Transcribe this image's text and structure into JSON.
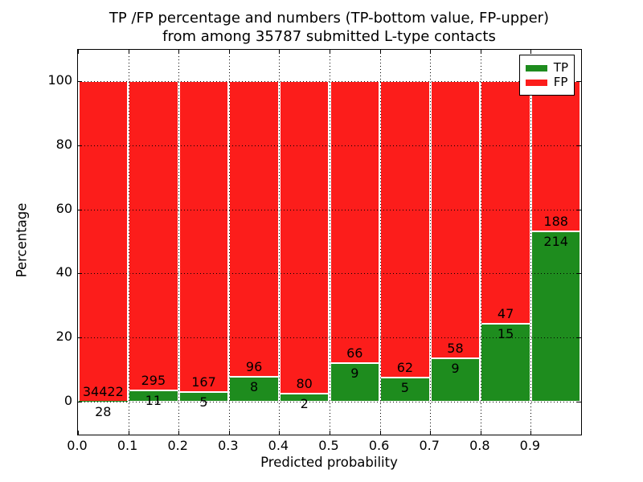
{
  "chart_data": {
    "type": "bar",
    "subtype": "stacked-percentage",
    "title_line1": "TP /FP percentage and numbers (TP-bottom value, FP-upper)",
    "title_line2": "from among 35787 submitted L-type contacts",
    "xlabel": "Predicted probability",
    "ylabel": "Percentage",
    "x_tick_labels": [
      "0.0",
      "0.1",
      "0.2",
      "0.3",
      "0.4",
      "0.5",
      "0.6",
      "0.7",
      "0.8",
      "0.9"
    ],
    "y_tick_labels": [
      0,
      20,
      40,
      60,
      80,
      100
    ],
    "xlim": [
      0.0,
      1.0
    ],
    "ylim": [
      -10.8,
      110.3
    ],
    "grid": "dotted-black-both-axes",
    "legend": {
      "position": "upper-right",
      "entries": [
        {
          "label": "TP",
          "key": "tp"
        },
        {
          "label": "FP",
          "key": "fp"
        }
      ]
    },
    "colors": {
      "tp": "#1e8c1e",
      "fp": "#fc1d1b"
    },
    "bins": [
      {
        "range_start": "0.0",
        "tp": 28,
        "fp": 34422
      },
      {
        "range_start": "0.1",
        "tp": 11,
        "fp": 295
      },
      {
        "range_start": "0.2",
        "tp": 5,
        "fp": 167
      },
      {
        "range_start": "0.3",
        "tp": 8,
        "fp": 96
      },
      {
        "range_start": "0.4",
        "tp": 2,
        "fp": 80
      },
      {
        "range_start": "0.5",
        "tp": 9,
        "fp": 66
      },
      {
        "range_start": "0.6",
        "tp": 5,
        "fp": 62
      },
      {
        "range_start": "0.7",
        "tp": 9,
        "fp": 58
      },
      {
        "range_start": "0.8",
        "tp": 15,
        "fp": 47
      },
      {
        "range_start": "0.9",
        "tp": 214,
        "fp": 188
      }
    ],
    "total_submitted": 35787
  }
}
